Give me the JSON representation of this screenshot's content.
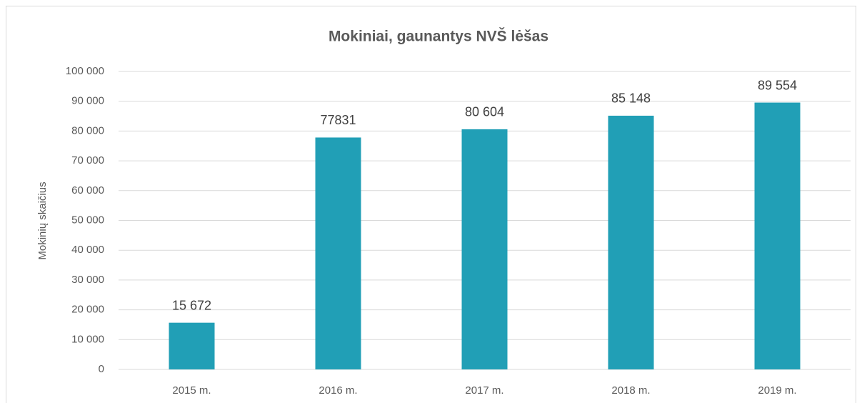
{
  "chart_data": {
    "type": "bar",
    "title": "Mokiniai, gaunantys NVŠ lėšas",
    "y_label": "Mokinių skaičius",
    "categories": [
      "2015 m.",
      "2016 m.",
      "2017 m.",
      "2018 m.",
      "2019 m."
    ],
    "values": [
      15672,
      77831,
      80604,
      85148,
      89554
    ],
    "value_labels": [
      "15 672",
      "77831",
      "80 604",
      "85 148",
      "89 554"
    ],
    "color": "#219fb6",
    "ylim": [
      0,
      100000
    ],
    "yticks": [
      0,
      {
        "value": 10000,
        "label": "10 000"
      },
      {
        "value": 20000,
        "label": "20 000"
      },
      {
        "value": 30000,
        "label": "30 000"
      },
      {
        "value": 40000,
        "label": "40 000"
      },
      {
        "value": 50000,
        "label": "50 000"
      },
      {
        "value": 60000,
        "label": "60 000"
      },
      {
        "value": 70000,
        "label": "70 000"
      },
      {
        "value": 80000,
        "label": "80 000"
      },
      {
        "value": 90000,
        "label": "90 000"
      },
      {
        "value": 100000,
        "label": "100 000"
      }
    ],
    "grid": true
  }
}
